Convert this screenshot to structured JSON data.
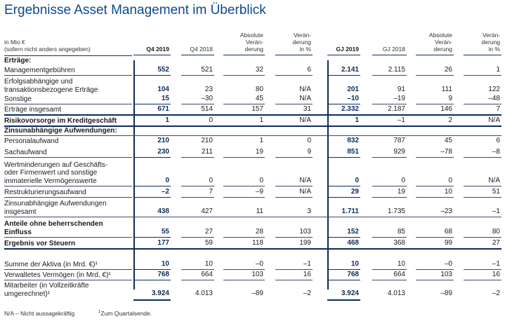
{
  "title": "Ergebnisse Asset Management im Überblick",
  "header": {
    "unit_line1": "in Mio €",
    "unit_line2": "(sofern nicht anders angegeben)",
    "cols": [
      {
        "lines": [
          "Q4 2019"
        ],
        "bold": true
      },
      {
        "lines": [
          "Q4 2018"
        ],
        "bold": false
      },
      {
        "lines": [
          "Absolute",
          "Verän-",
          "derung"
        ],
        "bold": false
      },
      {
        "lines": [
          "Verän-",
          "derung",
          "in %"
        ],
        "bold": false
      },
      {
        "lines": [
          "GJ 2019"
        ],
        "bold": true
      },
      {
        "lines": [
          "GJ 2018"
        ],
        "bold": false
      },
      {
        "lines": [
          "Absolute",
          "Verän-",
          "derung"
        ],
        "bold": false
      },
      {
        "lines": [
          "Verän-",
          "derung",
          "in %"
        ],
        "bold": false
      }
    ]
  },
  "rows": [
    {
      "label": "Erträge:",
      "bold": true,
      "values": [
        "",
        "",
        "",
        "",
        "",
        "",
        "",
        ""
      ]
    },
    {
      "label": "Managementgebühren",
      "bold": false,
      "values": [
        "552",
        "521",
        "32",
        "6",
        "2.141",
        "2.115",
        "26",
        "1"
      ]
    },
    {
      "label": "Erfolgsabhängige und\ntransaktionsbezogene Erträge",
      "bold": false,
      "values": [
        "104",
        "23",
        "80",
        "N/A",
        "201",
        "91",
        "111",
        "122"
      ]
    },
    {
      "label": "Sonstige",
      "bold": false,
      "values": [
        "15",
        "–30",
        "45",
        "N/A",
        "–10",
        "–19",
        "9",
        "–48"
      ]
    },
    {
      "label": "Erträge insgesamt",
      "bold": false,
      "values": [
        "671",
        "514",
        "157",
        "31",
        "2.332",
        "2.187",
        "146",
        "7"
      ]
    },
    {
      "label": "Risikovorsorge im Kreditgeschäft",
      "bold": true,
      "values": [
        "1",
        "0",
        "1",
        "N/A",
        "1",
        "–1",
        "2",
        "N/A"
      ]
    },
    {
      "label": "Zinsunabhängige Aufwendungen:",
      "bold": true,
      "values": [
        "",
        "",
        "",
        "",
        "",
        "",
        "",
        ""
      ]
    },
    {
      "label": "Personalaufwand",
      "bold": false,
      "values": [
        "210",
        "210",
        "1",
        "0",
        "832",
        "787",
        "45",
        "6"
      ]
    },
    {
      "label": "Sachaufwand",
      "bold": false,
      "values": [
        "230",
        "211",
        "19",
        "9",
        "851",
        "929",
        "–78",
        "–8"
      ]
    },
    {
      "label": "Wertminderungen auf Geschäfts-\noder Firmenwert und sonstige\nimmaterielle Vermögenswerte",
      "bold": false,
      "values": [
        "0",
        "0",
        "0",
        "N/A",
        "0",
        "0",
        "0",
        "N/A"
      ]
    },
    {
      "label": "Restrukturierungsaufwand",
      "bold": false,
      "values": [
        "–2",
        "7",
        "–9",
        "N/A",
        "29",
        "19",
        "10",
        "51"
      ]
    },
    {
      "label": "Zinsunabhängige Aufwendungen\ninsgesamt",
      "bold": false,
      "values": [
        "438",
        "427",
        "11",
        "3",
        "1.711",
        "1.735",
        "–23",
        "–1"
      ]
    },
    {
      "label": "Anteile ohne beherrschenden\nEinfluss",
      "bold": true,
      "values": [
        "55",
        "27",
        "28",
        "103",
        "152",
        "85",
        "68",
        "80"
      ]
    },
    {
      "label": "Ergebnis vor Steuern",
      "bold": true,
      "values": [
        "177",
        "59",
        "118",
        "199",
        "468",
        "368",
        "99",
        "27"
      ]
    },
    {
      "label": "",
      "bold": false,
      "values": [
        "",
        "",
        "",
        "",
        "",
        "",
        "",
        ""
      ]
    },
    {
      "label": "Summe der Aktiva (in Mrd. €)¹",
      "bold": false,
      "values": [
        "10",
        "10",
        "–0",
        "–1",
        "10",
        "10",
        "–0",
        "–1"
      ]
    },
    {
      "label": "Verwaltetes Vermögen (in Mrd. €)¹",
      "bold": false,
      "values": [
        "768",
        "664",
        "103",
        "16",
        "768",
        "664",
        "103",
        "16"
      ]
    },
    {
      "label": "Mitarbeiter (in Vollzeitkräfte\numgerechnet)¹",
      "bold": false,
      "values": [
        "3.924",
        "4.013",
        "–89",
        "–2",
        "3.924",
        "4.013",
        "–89",
        "–2"
      ]
    }
  ],
  "footnotes": {
    "na": "N/A – Nicht aussagekräftig",
    "one_mark": "1",
    "one_text": "Zum Quartalsende."
  }
}
